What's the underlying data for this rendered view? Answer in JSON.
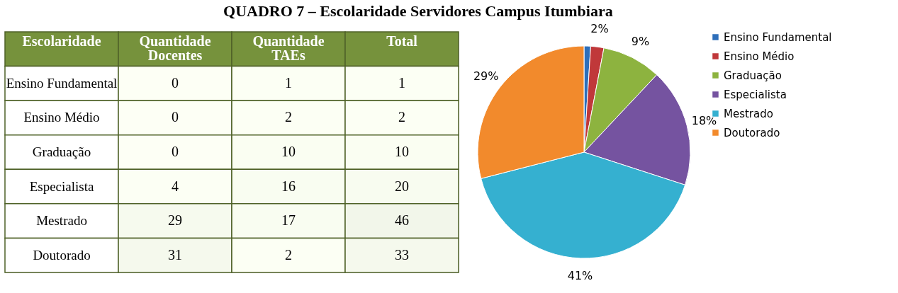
{
  "chart_data": [
    {
      "type": "heatmap",
      "title": "QUADRO 7 – Escolaridade Servidores Campus Itumbiara",
      "ylabel": "Escolaridade",
      "categories": [
        "Quantidade Docentes",
        "Quantidade TAEs",
        "Total"
      ],
      "y_categories": [
        "Ensino Fundamental",
        "Ensino Médio",
        "Graduação",
        "Especialista",
        "Mestrado",
        "Doutorado"
      ],
      "cells": [
        [
          0,
          1,
          1
        ],
        [
          0,
          2,
          2
        ],
        [
          0,
          10,
          10
        ],
        [
          4,
          16,
          20
        ],
        [
          29,
          17,
          46
        ],
        [
          31,
          2,
          33
        ]
      ],
      "cell_labels": [
        [
          "0",
          "1",
          "1"
        ],
        [
          "0",
          "2",
          "2"
        ],
        [
          "0",
          "10",
          "10"
        ],
        [
          "4",
          "16",
          "20"
        ],
        [
          "29",
          "17",
          "46"
        ],
        [
          "31",
          "2",
          "33"
        ]
      ]
    },
    {
      "type": "pie",
      "categories": [
        "Ensino Fundamental",
        "Ensino Médio",
        "Graduação",
        "Especialista",
        "Mestrado",
        "Doutorado"
      ],
      "values": [
        1,
        2,
        9,
        18,
        41,
        29
      ],
      "value_labels": [
        null,
        "2%",
        "9%",
        "18%",
        "41%",
        "29%"
      ],
      "colors": [
        "#2e6fba",
        "#c0383a",
        "#8db33f",
        "#7553a0",
        "#35b0d0",
        "#f28a2c"
      ],
      "legend": "right"
    }
  ]
}
